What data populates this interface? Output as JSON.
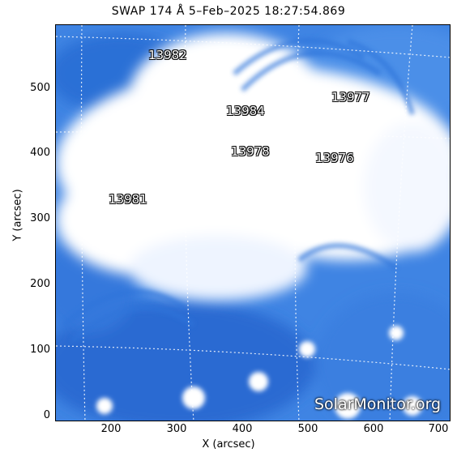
{
  "title": "SWAP 174 Å   5–Feb–2025 18:27:54.869",
  "axes": {
    "xlabel": "X (arcsec)",
    "ylabel": "Y (arcsec)",
    "xticks": [
      "200",
      "300",
      "400",
      "500",
      "600",
      "700"
    ],
    "yticks": [
      "0",
      "100",
      "200",
      "300",
      "400",
      "500"
    ]
  },
  "regions": [
    {
      "label": "13982"
    },
    {
      "label": "13984"
    },
    {
      "label": "13977"
    },
    {
      "label": "13978"
    },
    {
      "label": "13976"
    },
    {
      "label": "13981"
    }
  ],
  "watermark": "SolarMonitor.org",
  "colors": {
    "plasma_dark": "#1e5fd0",
    "plasma_mid": "#4a8ee8",
    "plasma_bright": "#ffffff"
  }
}
